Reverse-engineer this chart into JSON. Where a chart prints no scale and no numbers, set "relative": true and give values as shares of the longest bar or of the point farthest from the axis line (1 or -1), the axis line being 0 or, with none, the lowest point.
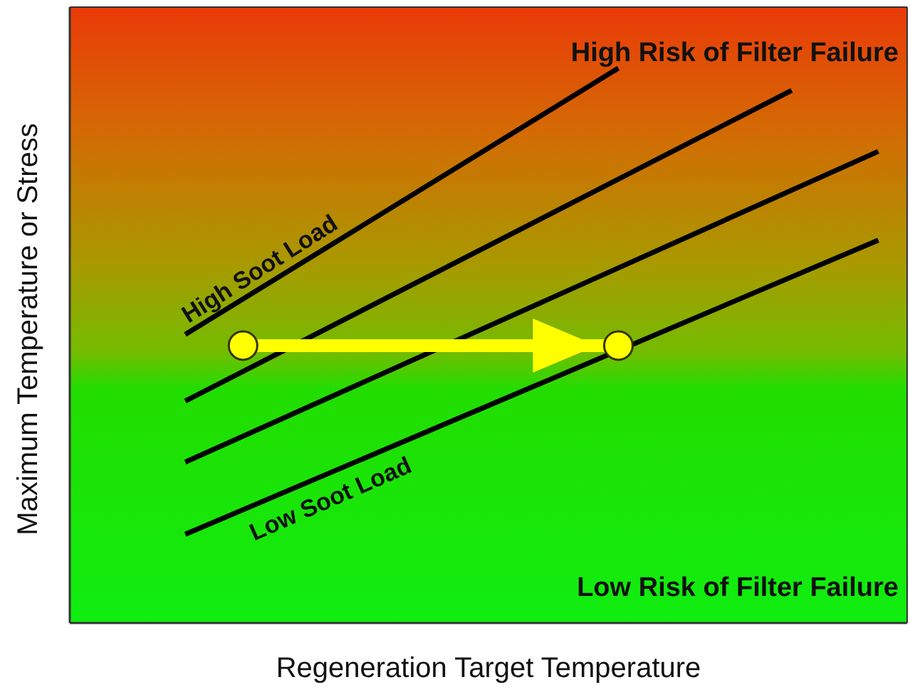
{
  "chart_data": {
    "type": "line",
    "relative": true,
    "xlabel": "Regeneration Target Temperature",
    "ylabel": "Maximum Temperature or Stress",
    "annotations": [
      "High Risk of Filter Failure",
      "Low Risk of Filter Failure"
    ],
    "categories": [
      null,
      null,
      null,
      null,
      null,
      null,
      null,
      null,
      null,
      null,
      null,
      null,
      null,
      null,
      null,
      null,
      null,
      null,
      null,
      null,
      null,
      null,
      null,
      null,
      null,
      null,
      null,
      null,
      null,
      null
    ],
    "grid": false,
    "legend": false,
    "marker": "none",
    "series": [
      {
        "name": "High Soot Load",
        "color": "#000000",
        "values": [
          null,
          null,
          null,
          null,
          0.52,
          null,
          null,
          null,
          null,
          null,
          null,
          null,
          null,
          null,
          null,
          null,
          null,
          null,
          null,
          1,
          null,
          null,
          null,
          null,
          null,
          null,
          null,
          null,
          null,
          null
        ]
      },
      {
        "color": "#000000",
        "values": [
          null,
          null,
          null,
          null,
          0.4,
          null,
          null,
          null,
          null,
          null,
          null,
          null,
          null,
          null,
          null,
          null,
          null,
          null,
          null,
          null,
          null,
          null,
          null,
          null,
          null,
          0.96,
          null,
          null,
          null,
          null
        ]
      },
      {
        "color": "#000000",
        "values": [
          null,
          null,
          null,
          null,
          0.29,
          null,
          null,
          null,
          null,
          null,
          null,
          null,
          null,
          null,
          null,
          null,
          null,
          null,
          null,
          null,
          null,
          null,
          null,
          null,
          null,
          null,
          null,
          null,
          0.85,
          null
        ]
      },
      {
        "name": "Low Soot Load",
        "color": "#000000",
        "values": [
          null,
          null,
          null,
          null,
          0.16,
          null,
          null,
          null,
          null,
          null,
          null,
          null,
          null,
          null,
          null,
          null,
          null,
          null,
          null,
          null,
          null,
          null,
          null,
          null,
          null,
          null,
          null,
          null,
          0.69,
          null
        ]
      },
      {
        "color": "#ffff00",
        "marker": "circle",
        "values": [
          null,
          null,
          null,
          null,
          null,
          null,
          0.5,
          null,
          null,
          null,
          null,
          null,
          null,
          null,
          null,
          null,
          null,
          null,
          null,
          0.5,
          null,
          null,
          null,
          null,
          null,
          null,
          null,
          null,
          null,
          null
        ]
      }
    ]
  }
}
